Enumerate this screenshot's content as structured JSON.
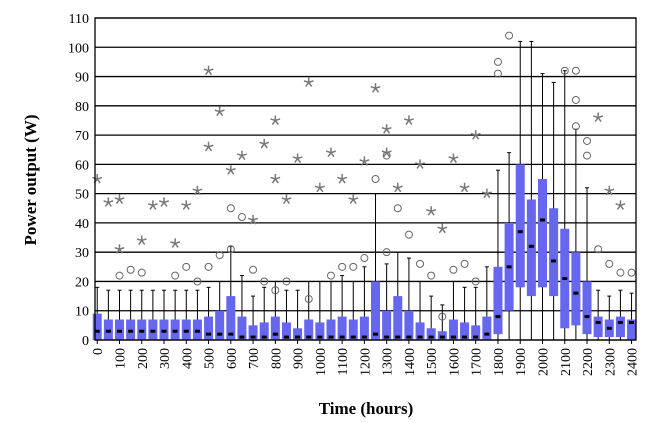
{
  "chart_data": {
    "type": "box",
    "x_label": "Time (hours)",
    "y_label": "Power output (W)",
    "x": [
      0,
      50,
      100,
      150,
      200,
      250,
      300,
      350,
      400,
      450,
      500,
      550,
      600,
      650,
      700,
      750,
      800,
      850,
      900,
      950,
      1000,
      1050,
      1100,
      1150,
      1200,
      1250,
      1300,
      1350,
      1400,
      1450,
      1500,
      1550,
      1600,
      1650,
      1700,
      1750,
      1800,
      1850,
      1900,
      1950,
      2000,
      2050,
      2100,
      2150,
      2200,
      2250,
      2300,
      2350,
      2400
    ],
    "whisker_low": [
      0,
      0,
      0,
      0,
      0,
      0,
      0,
      0,
      0,
      0,
      0,
      0,
      0,
      0,
      0,
      0,
      0,
      0,
      0,
      0,
      0,
      0,
      0,
      0,
      0,
      0,
      0,
      0,
      0,
      0,
      0,
      0,
      0,
      0,
      0,
      0,
      0,
      0,
      0,
      0,
      0,
      0,
      0,
      0,
      0,
      0,
      0,
      0,
      0
    ],
    "q1": [
      0,
      0,
      0,
      0,
      0,
      0,
      0,
      0,
      0,
      0,
      0,
      0,
      0,
      0,
      0,
      0,
      0,
      0,
      0,
      0,
      0,
      0,
      0,
      0,
      0,
      0,
      0,
      0,
      0,
      0,
      0,
      0,
      0,
      0,
      0,
      0,
      2,
      10,
      18,
      15,
      18,
      15,
      4,
      5,
      2,
      1,
      1,
      1,
      0
    ],
    "median": [
      3,
      3,
      3,
      3,
      3,
      3,
      3,
      3,
      3,
      3,
      2,
      2,
      2,
      1,
      1,
      1,
      2,
      1,
      1,
      1,
      1,
      1,
      1,
      1,
      1,
      2,
      1,
      1,
      1,
      1,
      1,
      1,
      1,
      1,
      1,
      2,
      8,
      25,
      37,
      32,
      41,
      27,
      21,
      16,
      8,
      6,
      4,
      6,
      6
    ],
    "q3": [
      9,
      7,
      7,
      7,
      7,
      7,
      7,
      7,
      7,
      7,
      8,
      10,
      15,
      8,
      5,
      6,
      8,
      6,
      4,
      7,
      6,
      7,
      8,
      7,
      8,
      20,
      10,
      15,
      10,
      6,
      4,
      3,
      7,
      6,
      5,
      8,
      25,
      40,
      60,
      48,
      55,
      45,
      38,
      30,
      20,
      8,
      7,
      8,
      7
    ],
    "whisker_high": [
      18,
      17,
      17,
      17,
      17,
      17,
      17,
      17,
      17,
      17,
      18,
      20,
      32,
      22,
      15,
      18,
      20,
      17,
      17,
      20,
      20,
      20,
      22,
      20,
      25,
      50,
      26,
      30,
      28,
      20,
      15,
      12,
      20,
      18,
      18,
      25,
      58,
      64,
      102,
      102,
      91,
      88,
      92,
      72,
      52,
      17,
      15,
      17,
      16
    ],
    "color": "#6666ee",
    "outliers_circle": [
      [
        100,
        22
      ],
      [
        150,
        24
      ],
      [
        200,
        23
      ],
      [
        350,
        22
      ],
      [
        400,
        25
      ],
      [
        450,
        20
      ],
      [
        500,
        25
      ],
      [
        550,
        29
      ],
      [
        600,
        31
      ],
      [
        600,
        45
      ],
      [
        650,
        42
      ],
      [
        700,
        24
      ],
      [
        750,
        20
      ],
      [
        800,
        17
      ],
      [
        850,
        20
      ],
      [
        950,
        14
      ],
      [
        1050,
        22
      ],
      [
        1100,
        25
      ],
      [
        1150,
        25
      ],
      [
        1200,
        28
      ],
      [
        1250,
        55
      ],
      [
        1300,
        63
      ],
      [
        1300,
        30
      ],
      [
        1350,
        45
      ],
      [
        1400,
        36
      ],
      [
        1450,
        26
      ],
      [
        1500,
        22
      ],
      [
        1550,
        8
      ],
      [
        1600,
        24
      ],
      [
        1650,
        26
      ],
      [
        1700,
        20
      ],
      [
        1800,
        91
      ],
      [
        1800,
        95
      ],
      [
        1850,
        104
      ],
      [
        2100,
        92
      ],
      [
        2150,
        92
      ],
      [
        2150,
        82
      ],
      [
        2150,
        73
      ],
      [
        2200,
        68
      ],
      [
        2200,
        63
      ],
      [
        2250,
        31
      ],
      [
        2300,
        26
      ],
      [
        2350,
        23
      ],
      [
        2400,
        23
      ]
    ],
    "outliers_star": [
      [
        0,
        55
      ],
      [
        50,
        47
      ],
      [
        100,
        48
      ],
      [
        100,
        31
      ],
      [
        200,
        34
      ],
      [
        250,
        46
      ],
      [
        300,
        47
      ],
      [
        350,
        33
      ],
      [
        400,
        46
      ],
      [
        450,
        51
      ],
      [
        500,
        92
      ],
      [
        500,
        66
      ],
      [
        550,
        78
      ],
      [
        600,
        58
      ],
      [
        650,
        63
      ],
      [
        700,
        41
      ],
      [
        750,
        67
      ],
      [
        800,
        75
      ],
      [
        800,
        55
      ],
      [
        850,
        48
      ],
      [
        900,
        62
      ],
      [
        950,
        88
      ],
      [
        1000,
        52
      ],
      [
        1050,
        64
      ],
      [
        1100,
        55
      ],
      [
        1150,
        48
      ],
      [
        1200,
        61
      ],
      [
        1250,
        86
      ],
      [
        1300,
        72
      ],
      [
        1300,
        64
      ],
      [
        1350,
        52
      ],
      [
        1400,
        75
      ],
      [
        1450,
        60
      ],
      [
        1500,
        44
      ],
      [
        1550,
        38
      ],
      [
        1600,
        62
      ],
      [
        1650,
        52
      ],
      [
        1700,
        70
      ],
      [
        1750,
        50
      ],
      [
        2250,
        76
      ],
      [
        2300,
        51
      ],
      [
        2350,
        46
      ]
    ],
    "ylim": [
      0,
      110
    ],
    "yticks": [
      0,
      10,
      20,
      30,
      40,
      50,
      60,
      70,
      80,
      90,
      100,
      110
    ],
    "xlim": [
      -10,
      2420
    ],
    "xticks": [
      0,
      100,
      200,
      300,
      400,
      500,
      600,
      700,
      800,
      900,
      1000,
      1100,
      1200,
      1300,
      1400,
      1500,
      1600,
      1700,
      1800,
      1900,
      2000,
      2100,
      2200,
      2300,
      2400
    ],
    "grid": true
  }
}
